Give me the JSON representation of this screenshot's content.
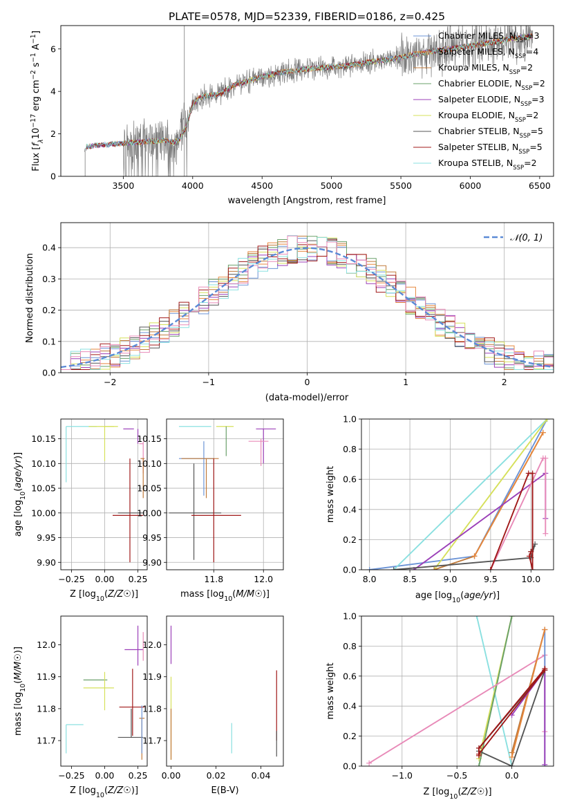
{
  "figure_title": "PLATE=0578, MJD=52339, FIBERID=0186, z=0.425",
  "colors": {
    "Chabrier MILES": "#6b93d6",
    "Salpeter MILES": "#e6873c",
    "Kroupa MILES": "#c07a3a",
    "Chabrier ELODIE": "#6aa06a",
    "Salpeter ELODIE": "#9b3fb8",
    "Kroupa ELODIE": "#d6e05a",
    "Chabrier STELIB": "#555555",
    "Salpeter STELIB": "#a01818",
    "Kroupa STELIB": "#8ae0e0",
    "pink": "#e88ab8",
    "normal": "#5b8ad6"
  },
  "chart_data": [
    {
      "id": "spectrum",
      "type": "line",
      "xlabel": "wavelength [Angstrom, rest frame]",
      "ylabel": "Flux [f_λ10^-17 erg cm^-2 s^-1 A^-1]",
      "xlim": [
        3050,
        6600
      ],
      "ylim": [
        0,
        7.1
      ],
      "xticks": [
        3500,
        4000,
        4500,
        5000,
        5500,
        6000,
        6500
      ],
      "yticks": [
        0,
        2,
        4,
        6
      ],
      "legend_position": "top-right",
      "legend": [
        {
          "label": "Chabrier MILES, N",
          "sub": "SSP",
          "tail": "=3",
          "color": "#6b93d6"
        },
        {
          "label": "Salpeter MILES, N",
          "sub": "SSP",
          "tail": "=4",
          "color": "#e6873c"
        },
        {
          "label": "Kroupa MILES, N",
          "sub": "SSP",
          "tail": "=2",
          "color": "#c07a3a"
        },
        {
          "label": "Chabrier ELODIE, N",
          "sub": "SSP",
          "tail": "=2",
          "color": "#6aa06a"
        },
        {
          "label": "Salpeter ELODIE, N",
          "sub": "SSP",
          "tail": "=3",
          "color": "#9b3fb8"
        },
        {
          "label": "Kroupa ELODIE, N",
          "sub": "SSP",
          "tail": "=2",
          "color": "#d6e05a"
        },
        {
          "label": "Chabrier STELIB, N",
          "sub": "SSP",
          "tail": "=5",
          "color": "#555555"
        },
        {
          "label": "Salpeter STELIB, N",
          "sub": "SSP",
          "tail": "=5",
          "color": "#a01818"
        },
        {
          "label": "Kroupa STELIB, N",
          "sub": "SSP",
          "tail": "=2",
          "color": "#8ae0e0"
        }
      ],
      "model_curve": {
        "x": [
          3220,
          3235,
          3300,
          3400,
          3500,
          3600,
          3700,
          3800,
          3850,
          3900,
          3950,
          4000,
          4050,
          4100,
          4200,
          4300,
          4400,
          4500,
          4600,
          4700,
          4800,
          4900,
          5000,
          5100,
          5200,
          5300,
          5400,
          5500,
          5600,
          5700,
          5800,
          5900,
          6000,
          6100,
          6200,
          6300,
          6450
        ],
        "y": [
          1.2,
          1.4,
          1.45,
          1.5,
          1.55,
          1.6,
          1.65,
          1.7,
          1.6,
          1.7,
          2.3,
          3.4,
          3.7,
          3.8,
          3.9,
          4.3,
          4.5,
          4.7,
          4.85,
          4.95,
          5.05,
          5.1,
          5.15,
          5.2,
          5.3,
          5.4,
          5.5,
          5.6,
          5.75,
          5.85,
          5.95,
          6.05,
          6.15,
          6.25,
          6.35,
          6.5,
          6.6
        ]
      }
    },
    {
      "id": "residuals",
      "type": "histogram",
      "xlabel": "(data-model)/error",
      "ylabel": "Normed distribution",
      "xlim": [
        -2.5,
        2.5
      ],
      "ylim": [
        0,
        0.48
      ],
      "xticks": [
        -2,
        -1,
        0,
        1,
        2
      ],
      "yticks": [
        0.0,
        0.1,
        0.2,
        0.3,
        0.4
      ],
      "legend_position": "top-right",
      "legend_label": "𝒩(0, 1)",
      "bin_width": 0.1,
      "variants": 9
    },
    {
      "id": "age-vs-Z",
      "type": "errorbar",
      "xlabel": "Z [log10(Z/Z☉)]",
      "ylabel": "age  [log10(age/yr)]",
      "xlim": [
        -0.33,
        0.32
      ],
      "ylim": [
        9.885,
        10.19
      ],
      "xticks": [
        -0.25,
        0.0,
        0.25
      ],
      "xticklabels": [
        "−0.25",
        "0.00",
        "0.25"
      ],
      "yticks": [
        9.9,
        9.95,
        10.0,
        10.05,
        10.1,
        10.15
      ],
      "yticklabels": [
        "9.90",
        "9.95",
        "10.00",
        "10.05",
        "10.10",
        "10.15"
      ],
      "points": [
        {
          "x": -0.29,
          "y": 10.175,
          "xe": [
            0.0,
            0.23
          ],
          "ye": [
            0.113,
            0.0
          ],
          "color": "#8ae0e0"
        },
        {
          "x": -0.12,
          "y": 10.175,
          "xe": [
            0.0,
            0.22
          ],
          "ye": [
            0.0,
            0.0
          ],
          "color": "#d6e05a"
        },
        {
          "x": 0.0,
          "y": 10.175,
          "xe": [
            0.0,
            0.07
          ],
          "ye": [
            0.07,
            0.0
          ],
          "color": "#d6e05a"
        },
        {
          "x": 0.22,
          "y": 10.17,
          "xe": [
            0.08,
            0.0
          ],
          "ye": [
            0.0,
            0.0
          ],
          "color": "#9b3fb8"
        },
        {
          "x": 0.25,
          "y": 10.17,
          "xe": [
            0.0,
            0.0
          ],
          "ye": [
            0.03,
            0.0
          ],
          "color": "#9b3fb8"
        },
        {
          "x": 0.29,
          "y": 10.14,
          "xe": [
            0.03,
            0.0
          ],
          "ye": [
            0.06,
            0.005
          ],
          "color": "#e88ab8"
        },
        {
          "x": 0.29,
          "y": 10.11,
          "xe": [
            0.02,
            0.01
          ],
          "ye": [
            0.08,
            0.0
          ],
          "color": "#c07a3a"
        },
        {
          "x": 0.19,
          "y": 9.995,
          "xe": [
            0.13,
            0.1
          ],
          "ye": [
            0.095,
            0.115
          ],
          "color": "#a01818"
        },
        {
          "x": 0.1,
          "y": 10.0,
          "xe": [
            0.0,
            0.19
          ],
          "ye": [
            0.0,
            0.0
          ],
          "color": "#555555"
        }
      ]
    },
    {
      "id": "age-vs-mass",
      "type": "errorbar",
      "xlabel": "mass [log10(M/M☉)]",
      "xlim": [
        11.61,
        12.08
      ],
      "ylim": [
        9.885,
        10.19
      ],
      "xticks": [
        11.8,
        12.0
      ],
      "xticklabels": [
        "11.8",
        "12.0"
      ],
      "yticks": [
        9.9,
        9.95,
        10.0,
        10.05,
        10.1,
        10.15
      ],
      "yticklabels": [
        "9.90",
        "9.95",
        "10.00",
        "10.05",
        "10.10",
        "10.15"
      ],
      "points": [
        {
          "x": 11.67,
          "y": 10.175,
          "xe": [
            0.01,
            0.12
          ],
          "ye": [
            0.0,
            0.0
          ],
          "color": "#8ae0e0"
        },
        {
          "x": 11.86,
          "y": 10.175,
          "xe": [
            0.05,
            0.02
          ],
          "ye": [
            0.0,
            0.0
          ],
          "color": "#d6e05a"
        },
        {
          "x": 11.85,
          "y": 10.175,
          "xe": [
            0.0,
            0.0
          ],
          "ye": [
            0.06,
            0.0
          ],
          "color": "#6aa06a"
        },
        {
          "x": 12.0,
          "y": 10.17,
          "xe": [
            0.03,
            0.05
          ],
          "ye": [
            0.07,
            0.0
          ],
          "color": "#9b3fb8"
        },
        {
          "x": 11.99,
          "y": 10.145,
          "xe": [
            0.05,
            0.03
          ],
          "ye": [
            0.05,
            0.005
          ],
          "color": "#e88ab8"
        },
        {
          "x": 11.76,
          "y": 10.11,
          "xe": [
            0.1,
            0.04
          ],
          "ye": [
            0.075,
            0.035
          ],
          "color": "#6b93d6"
        },
        {
          "x": 11.77,
          "y": 10.11,
          "xe": [
            0.1,
            0.05
          ],
          "ye": [
            0.08,
            0.0
          ],
          "color": "#c07a3a"
        },
        {
          "x": 11.72,
          "y": 10.0,
          "xe": [
            0.1,
            0.11
          ],
          "ye": [
            0.095,
            0.1
          ],
          "color": "#555555"
        },
        {
          "x": 11.8,
          "y": 9.995,
          "xe": [
            0.09,
            0.11
          ],
          "ye": [
            0.095,
            0.115
          ],
          "color": "#a01818"
        }
      ]
    },
    {
      "id": "mass-weight-vs-age",
      "type": "line",
      "xlabel": "age  [log10(age/yr)]",
      "ylabel": "mass weight",
      "xlim": [
        7.9,
        10.28
      ],
      "ylim": [
        0,
        1.0
      ],
      "xticks": [
        8.0,
        8.5,
        9.0,
        9.5,
        10.0
      ],
      "xticklabels": [
        "8.0",
        "8.5",
        "9.0",
        "9.5",
        "10.0"
      ],
      "yticks": [
        0.0,
        0.2,
        0.4,
        0.6,
        0.8,
        1.0
      ],
      "yticklabels": [
        "0.0",
        "0.2",
        "0.4",
        "0.6",
        "0.8",
        "1.0"
      ],
      "series": [
        {
          "color": "#6b93d6",
          "x": [
            8.0,
            9.3,
            10.2
          ],
          "y": [
            0.0,
            0.09,
            1.0
          ]
        },
        {
          "color": "#8ae0e0",
          "x": [
            8.3,
            10.2
          ],
          "y": [
            0.0,
            1.0
          ]
        },
        {
          "color": "#d6e05a",
          "x": [
            8.8,
            10.2
          ],
          "y": [
            0.0,
            1.0
          ]
        },
        {
          "color": "#c07a3a",
          "x": [
            8.8,
            9.3,
            10.15
          ],
          "y": [
            0.0,
            0.09,
            0.91
          ]
        },
        {
          "color": "#e6873c",
          "x": [
            9.3,
            10.15
          ],
          "y": [
            0.09,
            0.91
          ]
        },
        {
          "color": "#9b3fb8",
          "x": [
            8.55,
            10.18,
            10.18
          ],
          "y": [
            0.0,
            0.64,
            0.34
          ]
        },
        {
          "color": "#e88ab8",
          "x": [
            9.5,
            10.15,
            10.18,
            10.18
          ],
          "y": [
            0.0,
            0.74,
            0.74,
            0.24
          ]
        },
        {
          "color": "#555555",
          "x": [
            8.3,
            10.0,
            10.05,
            10.0
          ],
          "y": [
            0.0,
            0.08,
            0.17,
            0.12
          ]
        },
        {
          "color": "#a01818",
          "x": [
            9.5,
            9.97,
            10.02,
            10.02,
            9.98,
            10.0
          ],
          "y": [
            0.0,
            0.64,
            0.64,
            0.0,
            0.09,
            0.12
          ]
        }
      ]
    },
    {
      "id": "mass-vs-Z",
      "type": "errorbar",
      "xlabel": "Z [log10(Z/Z☉)]",
      "ylabel": "mass [log10(M/M☉)]",
      "xlim": [
        -0.33,
        0.32
      ],
      "ylim": [
        11.62,
        12.09
      ],
      "xticks": [
        -0.25,
        0.0,
        0.25
      ],
      "xticklabels": [
        "−0.25",
        "0.00",
        "0.25"
      ],
      "yticks": [
        11.7,
        11.8,
        11.9,
        12.0
      ],
      "yticklabels": [
        "11.7",
        "11.8",
        "11.9",
        "12.0"
      ],
      "points": [
        {
          "x": -0.29,
          "y": 11.75,
          "xe": [
            0.0,
            0.13
          ],
          "ye": [
            0.09,
            0.0
          ],
          "color": "#8ae0e0"
        },
        {
          "x": -0.08,
          "y": 11.89,
          "xe": [
            0.08,
            0.1
          ],
          "ye": [
            0.0,
            0.0
          ],
          "color": "#6aa06a"
        },
        {
          "x": 0.0,
          "y": 11.865,
          "xe": [
            0.16,
            0.07
          ],
          "ye": [
            0.07,
            0.05
          ],
          "color": "#d6e05a"
        },
        {
          "x": 0.21,
          "y": 11.805,
          "xe": [
            0.1,
            0.09
          ],
          "ye": [
            0.09,
            0.12
          ],
          "color": "#a01818"
        },
        {
          "x": 0.2,
          "y": 11.71,
          "xe": [
            0.1,
            0.09
          ],
          "ye": [
            0.0,
            0.09
          ],
          "color": "#555555"
        },
        {
          "x": 0.25,
          "y": 11.985,
          "xe": [
            0.1,
            0.04
          ],
          "ye": [
            0.05,
            0.075
          ],
          "color": "#9b3fb8"
        },
        {
          "x": 0.29,
          "y": 12.0,
          "xe": [
            0.0,
            0.01
          ],
          "ye": [
            0.05,
            0.04
          ],
          "color": "#e88ab8"
        },
        {
          "x": 0.28,
          "y": 11.77,
          "xe": [
            0.02,
            0.02
          ],
          "ye": [
            0.13,
            0.0
          ],
          "color": "#c07a3a"
        },
        {
          "x": 0.28,
          "y": 11.76,
          "xe": [
            0.0,
            0.0
          ],
          "ye": [
            0.1,
            0.05
          ],
          "color": "#6b93d6"
        }
      ]
    },
    {
      "id": "mass-vs-EBV",
      "type": "errorbar",
      "xlabel": "E(B-V)",
      "xlim": [
        -0.002,
        0.05
      ],
      "ylim": [
        11.62,
        12.09
      ],
      "xticks": [
        0.0,
        0.02,
        0.04
      ],
      "xticklabels": [
        "0.00",
        "0.02",
        "0.04"
      ],
      "yticks": [
        11.7,
        11.8,
        11.9,
        12.0
      ],
      "yticklabels": [
        "11.7",
        "11.8",
        "11.9",
        "12.0"
      ],
      "points": [
        {
          "x": 0.0,
          "y": 11.99,
          "xe": [
            0.0,
            0.0
          ],
          "ye": [
            0.05,
            0.07
          ],
          "color": "#9b3fb8"
        },
        {
          "x": 0.0,
          "y": 11.8,
          "xe": [
            0.0,
            0.0
          ],
          "ye": [
            0.16,
            0.1
          ],
          "color": "#d6e05a"
        },
        {
          "x": 0.0,
          "y": 11.75,
          "xe": [
            0.0,
            0.0
          ],
          "ye": [
            0.11,
            0.05
          ],
          "color": "#c07a3a"
        },
        {
          "x": 0.027,
          "y": 11.705,
          "xe": [
            0.0,
            0.0
          ],
          "ye": [
            0.045,
            0.05
          ],
          "color": "#8ae0e0"
        },
        {
          "x": 0.047,
          "y": 11.79,
          "xe": [
            0.0,
            0.0
          ],
          "ye": [
            0.09,
            0.13
          ],
          "color": "#a01818"
        },
        {
          "x": 0.047,
          "y": 11.7,
          "xe": [
            0.0,
            0.0
          ],
          "ye": [
            0.05,
            0.03
          ],
          "color": "#555555"
        }
      ]
    },
    {
      "id": "mass-weight-vs-Z",
      "type": "line",
      "xlabel": "Z [log10(Z/Z☉)]",
      "ylabel": "mass weight",
      "xlim": [
        -1.37,
        0.38
      ],
      "ylim": [
        0,
        1.0
      ],
      "xticks": [
        -1.0,
        -0.5,
        0.0
      ],
      "xticklabels": [
        "−1.0",
        "−0.5",
        "0.0"
      ],
      "yticks": [
        0.0,
        0.2,
        0.4,
        0.6,
        0.8,
        1.0
      ],
      "yticklabels": [
        "0.0",
        "0.2",
        "0.4",
        "0.6",
        "0.8",
        "1.0"
      ],
      "series": [
        {
          "color": "#8ae0e0",
          "x": [
            -0.32,
            0.0
          ],
          "y": [
            1.0,
            0.0
          ]
        },
        {
          "color": "#d6e05a",
          "x": [
            -0.3,
            0.0
          ],
          "y": [
            0.05,
            1.0
          ]
        },
        {
          "color": "#6aa06a",
          "x": [
            -0.3,
            0.0
          ],
          "y": [
            0.0,
            1.0
          ]
        },
        {
          "color": "#e88ab8",
          "x": [
            -1.3,
            0.3,
            0.3
          ],
          "y": [
            0.02,
            0.74,
            0.23
          ]
        },
        {
          "color": "#6b93d6",
          "x": [
            0.0,
            0.3,
            0.3
          ],
          "y": [
            0.09,
            0.91,
            0.0
          ]
        },
        {
          "color": "#c07a3a",
          "x": [
            0.0,
            0.3
          ],
          "y": [
            0.09,
            0.91
          ]
        },
        {
          "color": "#e6873c",
          "x": [
            0.0,
            0.3
          ],
          "y": [
            0.06,
            0.91
          ]
        },
        {
          "color": "#9b3fb8",
          "x": [
            0.0,
            0.3,
            0.3
          ],
          "y": [
            0.34,
            0.64,
            0.01
          ]
        },
        {
          "color": "#555555",
          "x": [
            -0.3,
            0.3,
            0.0,
            -0.3
          ],
          "y": [
            0.12,
            0.64,
            0.0,
            0.1
          ]
        },
        {
          "color": "#a01818",
          "x": [
            -0.3,
            0.3,
            0.3,
            -0.3,
            -0.3
          ],
          "y": [
            0.08,
            0.64,
            0.65,
            0.12,
            0.07
          ]
        }
      ]
    }
  ]
}
